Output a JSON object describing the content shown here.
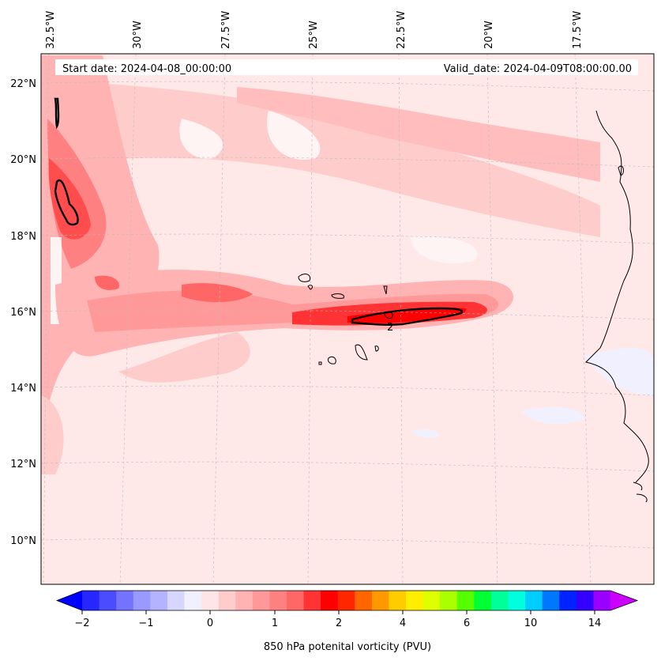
{
  "map": {
    "start_date": "Start date: 2024-04-08_00:00:00",
    "valid_date": "Valid_date: 2024-04-09T08:00:00.00",
    "contour_label": "2",
    "lon_labels": [
      "32.5°W",
      "30°W",
      "27.5°W",
      "25°W",
      "22.5°W",
      "20°W",
      "17.5°W"
    ],
    "lat_labels": [
      "22°N",
      "20°N",
      "18°N",
      "16°N",
      "14°N",
      "12°N",
      "10°N"
    ],
    "colormap_description_colors": {
      "low": "#0000ff",
      "neutral": "#ffe6e6",
      "mid": "#ff0000",
      "high": "#cc00ff"
    }
  },
  "colorbar": {
    "title": "850 hPa potenital vorticity (PVU)",
    "tick_labels": [
      "−2",
      "−1",
      "0",
      "1",
      "2",
      "4",
      "6",
      "10",
      "14"
    ],
    "colors": [
      "#0000ff",
      "#2626ff",
      "#4c4cff",
      "#7373ff",
      "#9999ff",
      "#b3b3ff",
      "#d6d6ff",
      "#f0f0ff",
      "#ffe6e6",
      "#ffcccc",
      "#ffb3b3",
      "#ff9999",
      "#ff8080",
      "#ff6666",
      "#ff3333",
      "#ff0000",
      "#ff2600",
      "#ff6600",
      "#ff9900",
      "#ffcc00",
      "#ffee00",
      "#ddff00",
      "#aaff00",
      "#55ff00",
      "#00ff33",
      "#00ff99",
      "#00ffdd",
      "#00ccff",
      "#0077ff",
      "#0022ff",
      "#3300ff",
      "#9900ff",
      "#cc00ff"
    ]
  }
}
